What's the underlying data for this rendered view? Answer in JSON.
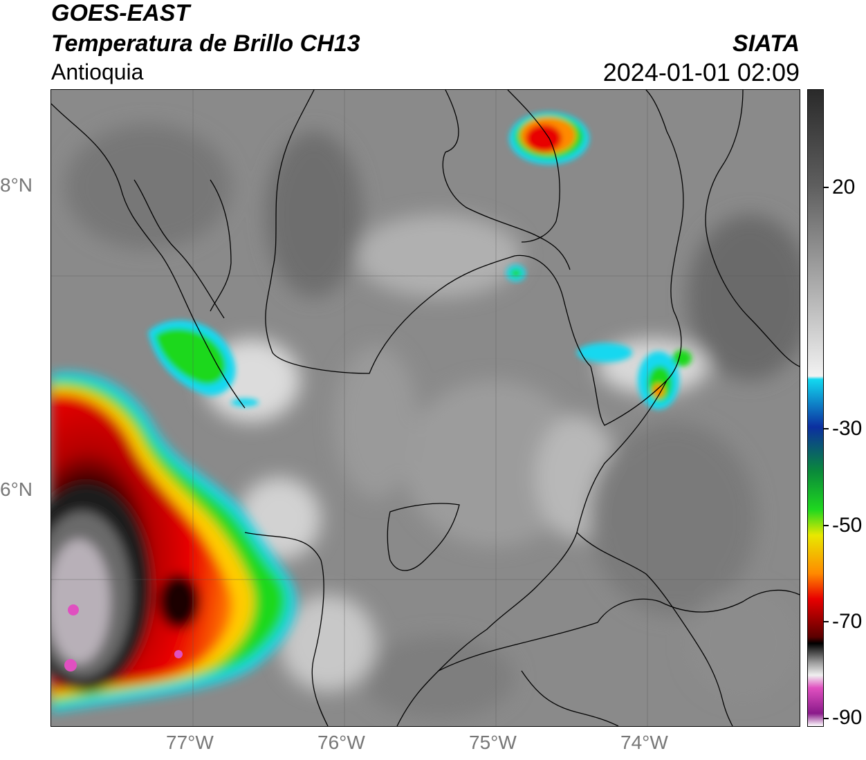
{
  "header": {
    "title_line1": "GOES-EAST",
    "title_line2": "Temperatura de Brillo CH13",
    "region": "Antioquia",
    "brand": "SIATA",
    "timestamp": "2024-01-01 02:09"
  },
  "axes": {
    "lat_labels": [
      "8°N",
      "6°N"
    ],
    "lon_labels": [
      "77°W",
      "76°W",
      "75°W",
      "74°W"
    ]
  },
  "colorbar": {
    "tick_labels": [
      "20",
      "-30",
      "-50",
      "-70",
      "-90"
    ],
    "gradient_colors": [
      "#2a2a2a",
      "#5e5e5e",
      "#a8a8a8",
      "#f2f2f2",
      "#12d8f0",
      "#0b2fa0",
      "#0a8a3a",
      "#1fd81f",
      "#e8e800",
      "#ff8a00",
      "#e80000",
      "#5a0000",
      "#000000",
      "#9b9b9b",
      "#f0f0f0",
      "#e050c0",
      "#8a1a8a",
      "#ffffff"
    ]
  },
  "map": {
    "background_color": "#8a8a8a",
    "legend_colors": {
      "cold_cloud_tops": "#e80000",
      "very_cold": "#000000",
      "extreme": "#e050c0",
      "mid": "#1fd81f",
      "edge": "#12d8f0"
    }
  }
}
